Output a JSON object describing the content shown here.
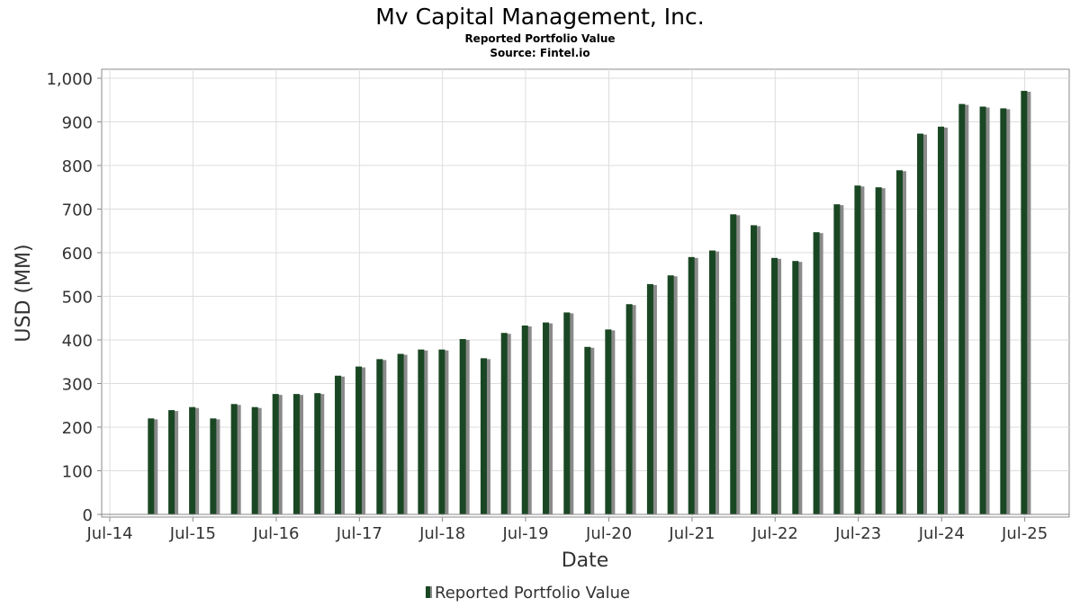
{
  "chart_data": {
    "type": "bar",
    "title": "Mv Capital Management, Inc.",
    "subtitle": "Reported Portfolio Value",
    "source": "Source: Fintel.io",
    "xlabel": "Date",
    "ylabel": "USD (MM)",
    "ylim": [
      0,
      1000
    ],
    "yticks": [
      0,
      100,
      200,
      300,
      400,
      500,
      600,
      700,
      800,
      900,
      1000
    ],
    "ytick_labels": [
      "0",
      "100",
      "200",
      "300",
      "400",
      "500",
      "600",
      "700",
      "800",
      "900",
      "1,000"
    ],
    "xlim": [
      "2014-07-01",
      "2025-08-15"
    ],
    "xtick_labels": [
      "Jul-14",
      "Jul-15",
      "Jul-16",
      "Jul-17",
      "Jul-18",
      "Jul-19",
      "Jul-20",
      "Jul-21",
      "Jul-22",
      "Jul-23",
      "Jul-24",
      "Jul-25"
    ],
    "xtick_dates": [
      "2014-07-01",
      "2015-07-01",
      "2016-07-01",
      "2017-07-01",
      "2018-07-01",
      "2019-07-01",
      "2020-07-01",
      "2021-07-01",
      "2022-07-01",
      "2023-07-01",
      "2024-07-01",
      "2025-07-01"
    ],
    "grid": true,
    "legend": "bottom-center",
    "series": [
      {
        "name": "Reported Portfolio Value",
        "color": "#1a4723",
        "x": [
          "2014-12-31",
          "2015-03-31",
          "2015-06-30",
          "2015-09-30",
          "2015-12-31",
          "2016-03-31",
          "2016-06-30",
          "2016-09-30",
          "2016-12-31",
          "2017-03-31",
          "2017-06-30",
          "2017-09-30",
          "2017-12-31",
          "2018-03-31",
          "2018-06-30",
          "2018-09-30",
          "2018-12-31",
          "2019-03-31",
          "2019-06-30",
          "2019-09-30",
          "2019-12-31",
          "2020-03-31",
          "2020-06-30",
          "2020-09-30",
          "2020-12-31",
          "2021-03-31",
          "2021-06-30",
          "2021-09-30",
          "2021-12-31",
          "2022-03-31",
          "2022-06-30",
          "2022-09-30",
          "2022-12-31",
          "2023-03-31",
          "2023-06-30",
          "2023-09-30",
          "2023-12-31",
          "2024-03-31",
          "2024-06-30",
          "2024-09-30",
          "2024-12-31",
          "2025-03-31",
          "2025-06-30"
        ],
        "values": [
          220,
          239,
          246,
          220,
          253,
          246,
          276,
          276,
          278,
          318,
          339,
          356,
          368,
          378,
          378,
          402,
          358,
          416,
          433,
          440,
          463,
          384,
          424,
          482,
          528,
          548,
          590,
          605,
          688,
          663,
          588,
          581,
          647,
          711,
          754,
          750,
          789,
          873,
          889,
          941,
          935,
          931,
          971
        ]
      }
    ]
  }
}
